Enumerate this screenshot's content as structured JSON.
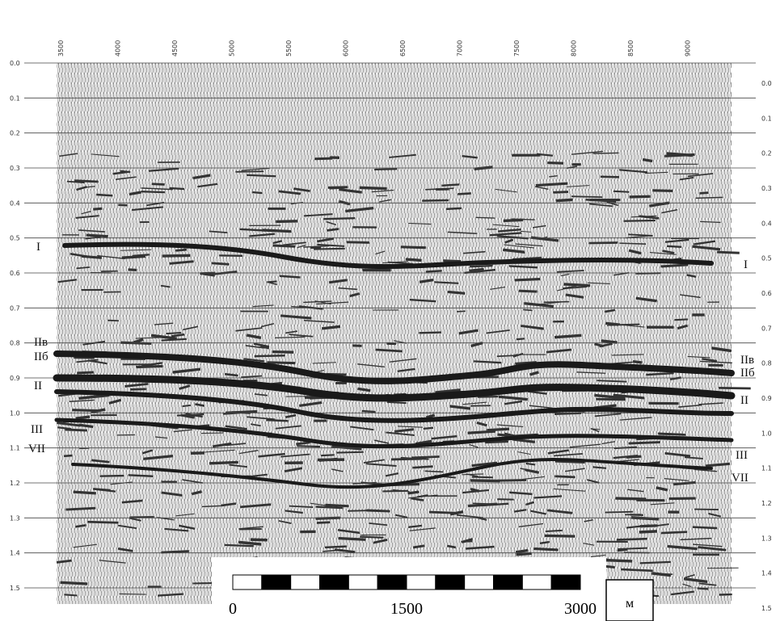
{
  "time_axis": {
    "left": [
      "0.0",
      "0.1",
      "0.2",
      "0.3",
      "0.4",
      "0.5",
      "0.6",
      "0.7",
      "0.8",
      "0.9",
      "1.0",
      "1.1",
      "1.2",
      "1.3",
      "1.4",
      "1.5"
    ],
    "right": [
      "0.0",
      "0.1",
      "0.2",
      "0.3",
      "0.4",
      "0.5",
      "0.6",
      "0.7",
      "0.8",
      "0.9",
      "1.0",
      "1.1",
      "1.2",
      "1.3",
      "1.4",
      "1.5"
    ]
  },
  "trace_numbers": [
    "3500",
    "4000",
    "4500",
    "5000",
    "5500",
    "6000",
    "6500",
    "7000",
    "7500",
    "8000",
    "8500",
    "9000"
  ],
  "horizons": {
    "left": [
      "I",
      "IIв",
      "IIб",
      "II",
      "III",
      "VII"
    ],
    "right": [
      "I",
      "IIв",
      "IIб",
      "II",
      "III",
      "VII"
    ]
  },
  "scale_bar": {
    "labels": [
      "0",
      "1500",
      "3000"
    ],
    "unit": "м"
  }
}
